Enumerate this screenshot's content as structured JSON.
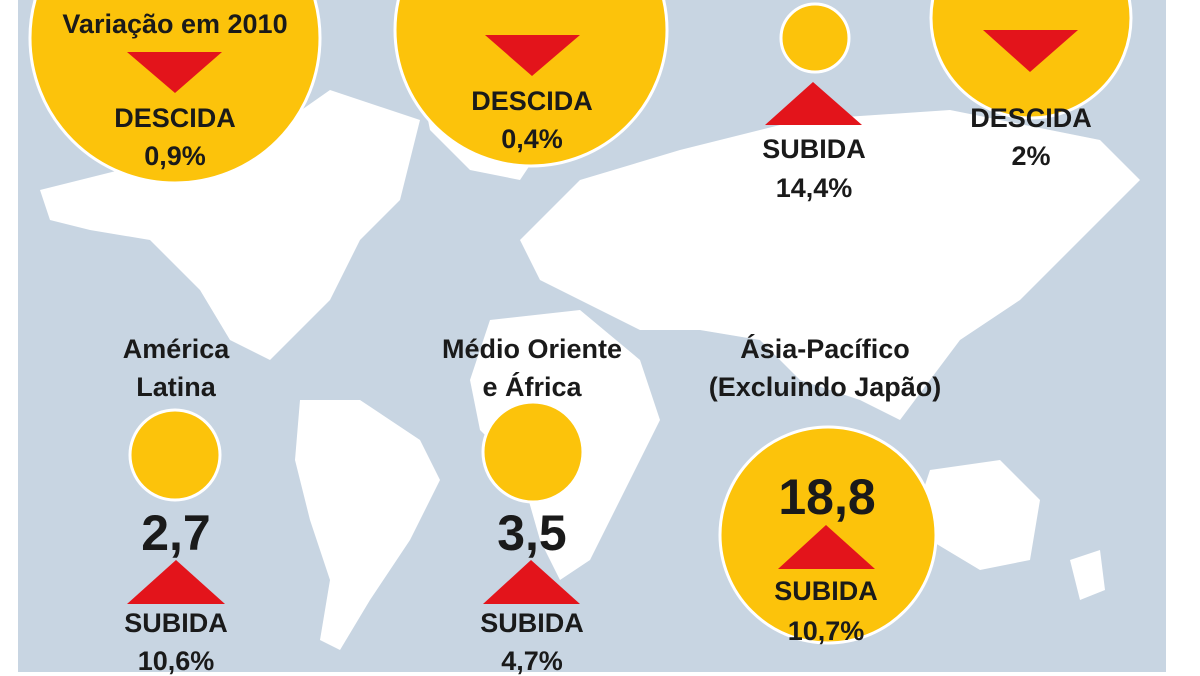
{
  "regions": [
    {
      "heading": "Variação em 2010",
      "direction": "DESCIDA",
      "change": "0,9%"
    },
    {
      "direction": "DESCIDA",
      "change": "0,4%"
    },
    {
      "direction": "SUBIDA",
      "change": "14,4%"
    },
    {
      "direction": "DESCIDA",
      "change": "2%"
    },
    {
      "name": [
        "América",
        "Latina"
      ],
      "value": "2,7",
      "direction": "SUBIDA",
      "change": "10,6%"
    },
    {
      "name": [
        "Médio Oriente",
        "e África"
      ],
      "value": "3,5",
      "direction": "SUBIDA",
      "change": "4,7%"
    },
    {
      "name": [
        "Ásia-Pacífico",
        "(Excluindo Japão)"
      ],
      "value": "18,8",
      "direction": "SUBIDA",
      "change": "10,7%"
    }
  ]
}
